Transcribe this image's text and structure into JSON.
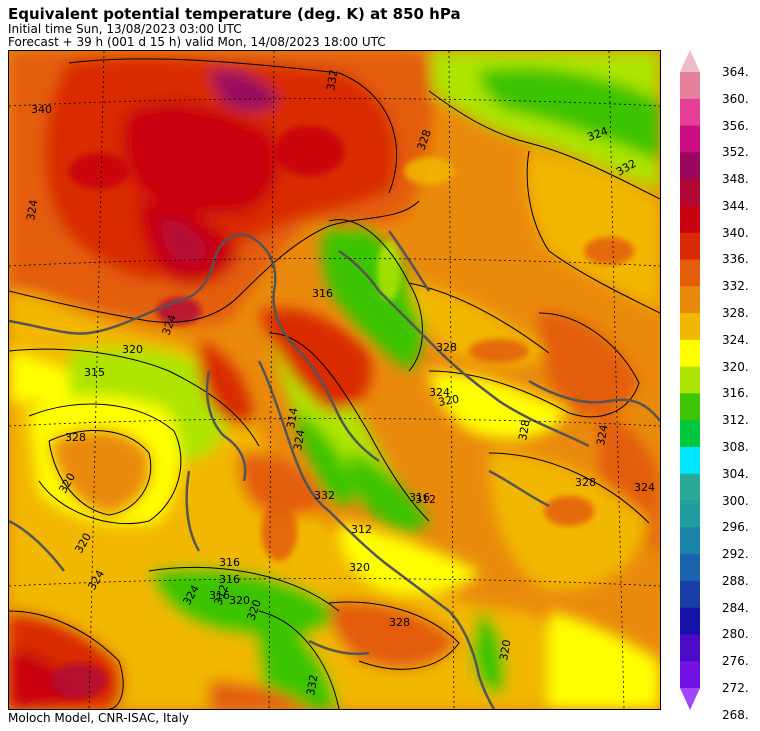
{
  "header": {
    "title": "Equivalent potential temperature (deg. K) at 850 hPa",
    "line1": "Initial time  Sun, 13/08/2023  03:00 UTC",
    "line2": "Forecast  +  39 h  (001 d 15 h)  valid Mon, 14/08/2023 18:00 UTC"
  },
  "footer": {
    "credit": "Moloch Model, CNR-ISAC, Italy"
  },
  "colorbar": {
    "labels": [
      "364.",
      "360.",
      "356.",
      "352.",
      "348.",
      "344.",
      "340.",
      "336.",
      "332.",
      "328.",
      "324.",
      "320.",
      "316.",
      "312.",
      "308.",
      "304.",
      "300.",
      "296.",
      "292.",
      "288.",
      "284.",
      "280.",
      "276.",
      "272.",
      "268."
    ],
    "colors": [
      "#ebbcc9",
      "#e6809b",
      "#e33f96",
      "#cc0d83",
      "#99075e",
      "#b30734",
      "#c90010",
      "#d92a05",
      "#e35d0b",
      "#ea8a0c",
      "#f2b700",
      "#ffff00",
      "#aee400",
      "#3ec400",
      "#00c83c",
      "#00e6ff",
      "#2aa998",
      "#209d9e",
      "#1b82a8",
      "#1a64ae",
      "#1a3fa9",
      "#1412a8",
      "#4a0ac6",
      "#7312e4",
      "#a046ff"
    ]
  },
  "map": {
    "contour_labels": [
      "340",
      "332",
      "324",
      "328",
      "324",
      "332",
      "316",
      "324",
      "320",
      "328",
      "315",
      "324",
      "328",
      "320",
      "314",
      "328",
      "324",
      "332",
      "312",
      "324",
      "320",
      "324",
      "316",
      "312",
      "320",
      "316",
      "312",
      "320",
      "320",
      "328",
      "324",
      "324",
      "316",
      "320",
      "316",
      "332",
      "328",
      "320"
    ]
  }
}
